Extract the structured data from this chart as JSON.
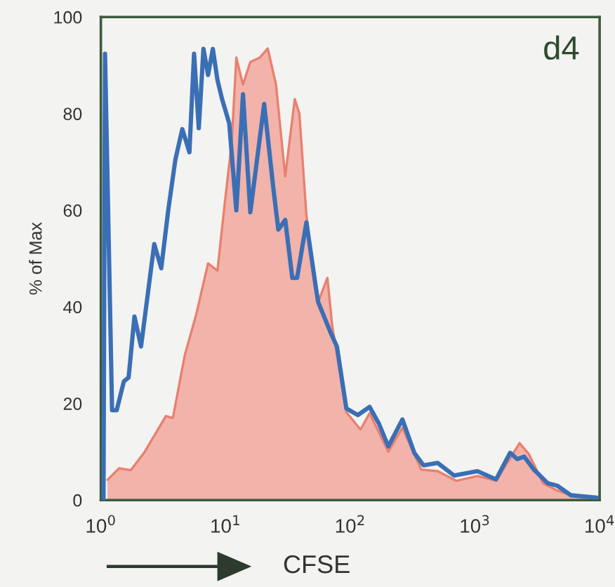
{
  "chart_data": {
    "type": "area",
    "xlabel": "CFSE",
    "ylabel": "% of Max",
    "annotations": [
      "d4"
    ],
    "log": "x",
    "xlim": [
      1,
      10000
    ],
    "xticks": [
      {
        "value": 1,
        "label": "10$^{0}$"
      },
      {
        "value": 10,
        "label": "10$^{1}$"
      },
      {
        "value": 100,
        "label": "10$^{2}$"
      },
      {
        "value": 1000,
        "label": "10$^{3}$"
      },
      {
        "value": 10000,
        "label": "10$^{4}$"
      }
    ],
    "ylim": [
      0,
      100
    ],
    "yticks": [
      0,
      20,
      40,
      60,
      80,
      100
    ],
    "grid": false,
    "legend": false,
    "series": [
      {
        "color": "#f2b3ab",
        "x": [
          1.13,
          1.4,
          1.74,
          2.25,
          3.32,
          3.78,
          4.71,
          5.84,
          7.24,
          8.61,
          9.81,
          11.2,
          12.2,
          13.8,
          15.8,
          18.8,
          21.8,
          25.4,
          30.1,
          35.9,
          39.1,
          44.5,
          55.3,
          65.6,
          71.8,
          93.0,
          121,
          143,
          170,
          202,
          262,
          371,
          502,
          709,
          1047,
          1479,
          2280,
          2713,
          3516,
          4560,
          5905,
          9488
        ],
        "values": [
          4.2,
          6.6,
          6.2,
          10,
          17.4,
          17,
          30,
          38.6,
          49,
          47.5,
          61,
          74,
          91.6,
          86,
          90.7,
          91.6,
          93.5,
          86,
          67,
          83,
          80,
          59,
          41,
          46,
          36,
          18.2,
          14.6,
          18,
          14,
          10,
          15,
          6.3,
          6,
          4,
          5,
          4,
          11.8,
          9.5,
          3.5,
          2,
          1,
          0.5
        ]
      },
      {
        "type": "line",
        "color": "#3a6fb5",
        "x": [
          1.05,
          1.08,
          1.23,
          1.34,
          1.53,
          1.67,
          1.86,
          2.1,
          2.68,
          3.05,
          3.47,
          3.96,
          4.5,
          5.13,
          5.59,
          6.1,
          6.65,
          7.24,
          7.91,
          8.61,
          9.38,
          10.7,
          12.2,
          13.8,
          15.8,
          20.4,
          24.3,
          26.5,
          30.1,
          34.3,
          37.5,
          44.5,
          53.0,
          55.3,
          68.7,
          78.2,
          93.0,
          115,
          143,
          170,
          202,
          262,
          326,
          387,
          502,
          679,
          1047,
          1479,
          1914,
          2182,
          2483,
          2951,
          3828,
          4560,
          5905,
          9488
        ],
        "values": [
          0,
          92.4,
          18.6,
          18.6,
          24.6,
          25.4,
          38,
          31.8,
          53,
          48,
          60,
          70.5,
          76.8,
          72,
          92.4,
          77,
          93.4,
          88,
          93.4,
          87,
          83,
          78,
          60,
          84,
          59.6,
          82,
          64,
          56,
          58,
          46,
          46,
          57.5,
          44,
          41,
          35,
          31.8,
          19,
          17.6,
          19.3,
          15.8,
          11.1,
          16.7,
          9.8,
          7.2,
          7.7,
          5.1,
          6,
          4.3,
          9.8,
          8.5,
          9,
          6.4,
          3.5,
          3,
          1,
          0.5
        ]
      }
    ]
  }
}
